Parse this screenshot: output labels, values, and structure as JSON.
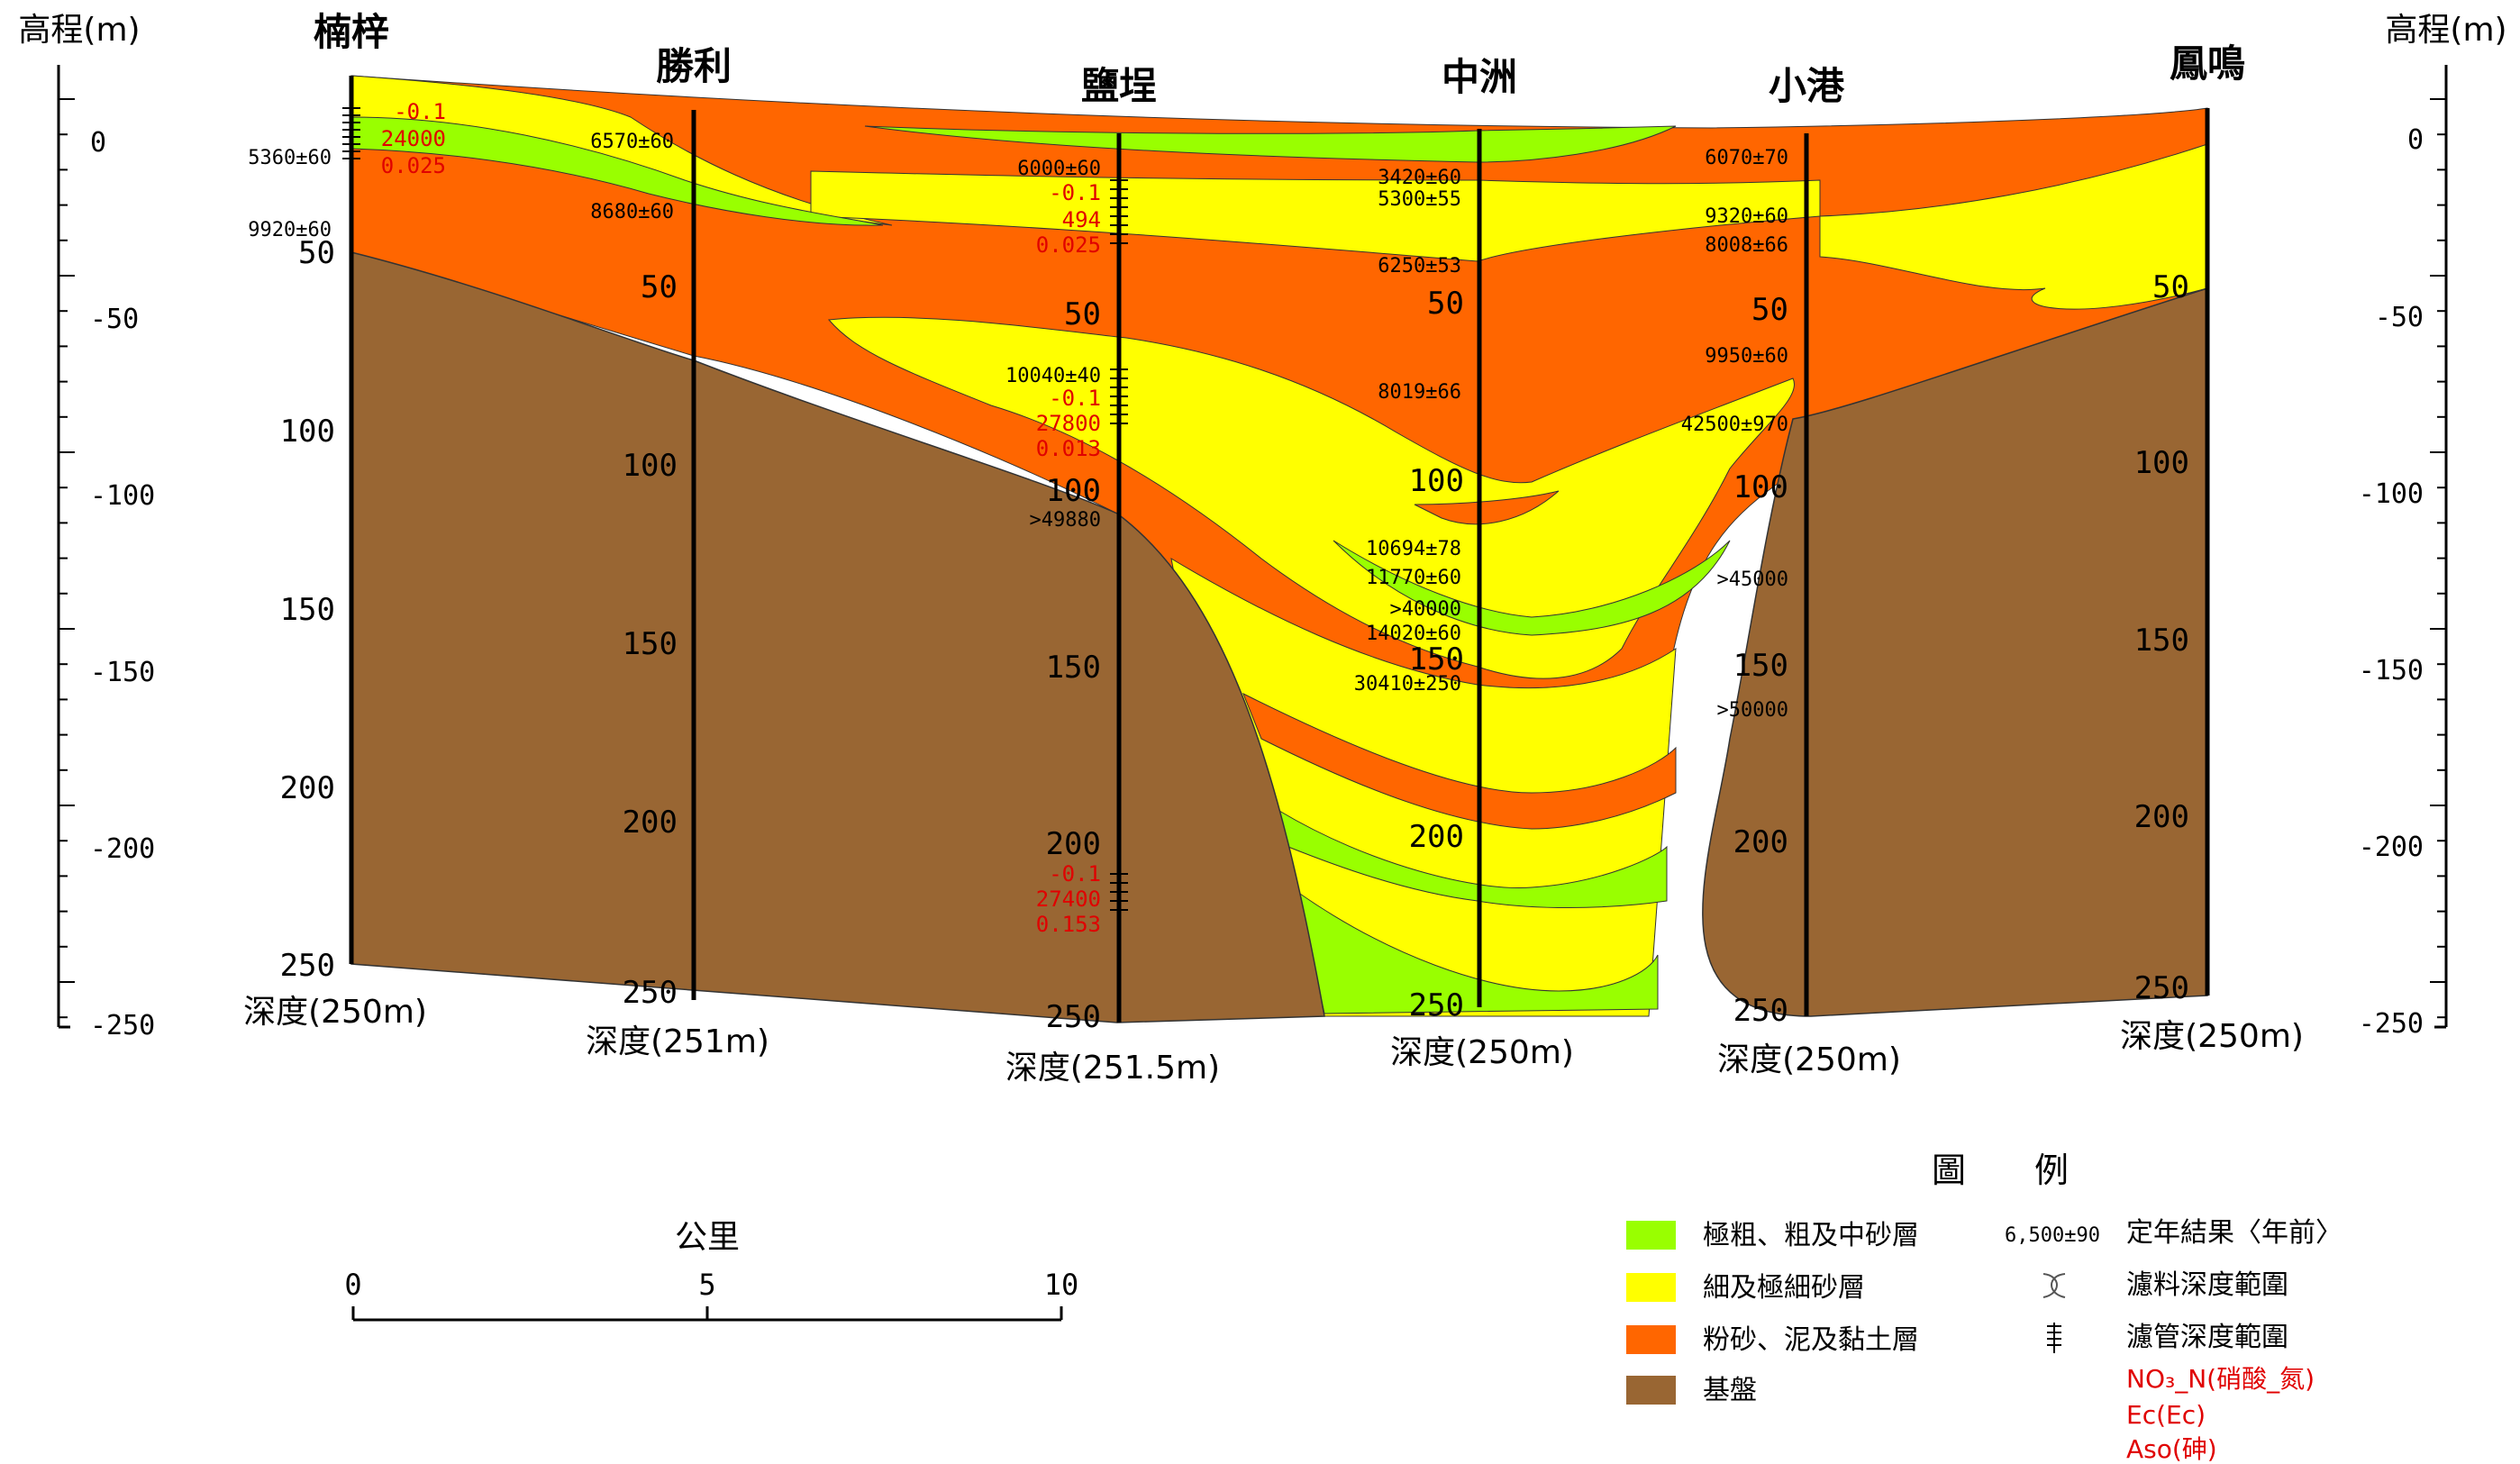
{
  "axis_label_left": "高程(m)",
  "axis_label_right": "高程(m)",
  "elevation_ticks": [
    "0",
    "-50",
    "-100",
    "-150",
    "-200",
    "-250"
  ],
  "wells": [
    {
      "name": "楠梓",
      "depth_label": "深度(250m)",
      "ticks": [
        "50",
        "100",
        "150",
        "200",
        "250"
      ]
    },
    {
      "name": "勝利",
      "depth_label": "深度(251m)",
      "ticks": [
        "50",
        "100",
        "150",
        "200",
        "250"
      ]
    },
    {
      "name": "鹽埕",
      "depth_label": "深度(251.5m)",
      "ticks": [
        "50",
        "100",
        "150",
        "200",
        "250"
      ]
    },
    {
      "name": "中洲",
      "depth_label": "深度(250m)",
      "ticks": [
        "50",
        "100",
        "150",
        "200",
        "250"
      ]
    },
    {
      "name": "小港",
      "depth_label": "深度(250m)",
      "ticks": [
        "50",
        "100",
        "150",
        "200",
        "250"
      ]
    },
    {
      "name": "鳳鳴",
      "depth_label": "深度(250m)",
      "ticks": [
        "50",
        "100",
        "150",
        "200",
        "250"
      ]
    }
  ],
  "dates": [
    "5360±60",
    "9920±60",
    "6570±60",
    "8680±60",
    "6000±60",
    "10040±40",
    ">49880",
    "3420±60",
    "5300±55",
    "6250±53",
    "8019±66",
    "10694±78",
    "11770±60",
    ">40000",
    "14020±60",
    "30410±250",
    "6070±70",
    "9320±60",
    "8008±66",
    "9950±60",
    "42500±970",
    ">45000",
    ">50000"
  ],
  "chem": [
    [
      "-0.1",
      "24000",
      "0.025"
    ],
    [
      "-0.1",
      "494",
      "0.025"
    ],
    [
      "-0.1",
      "27800",
      "0.013"
    ],
    [
      "-0.1",
      "27400",
      "0.153"
    ]
  ],
  "scale": {
    "title": "公里",
    "labels": [
      "0",
      "5",
      "10"
    ]
  },
  "legend": {
    "title": "圖　　例",
    "items": [
      {
        "label": "極粗、粗及中砂層",
        "color": "#99ff00"
      },
      {
        "label": "細及極細砂層",
        "color": "#ffff00"
      },
      {
        "label": "粉砂、泥及黏土層",
        "color": "#ff6600"
      },
      {
        "label": "基盤",
        "color": "#996633"
      }
    ],
    "symbols": [
      {
        "sample": "6,500±90",
        "label": "定年結果〈年前〉"
      },
      {
        "label": "濾料深度範圍"
      },
      {
        "label": "濾管深度範圍"
      }
    ],
    "chem_lines": [
      "NO₃_N(硝酸_氮)",
      "Ec(Ec)",
      "Aso(砷)"
    ]
  }
}
